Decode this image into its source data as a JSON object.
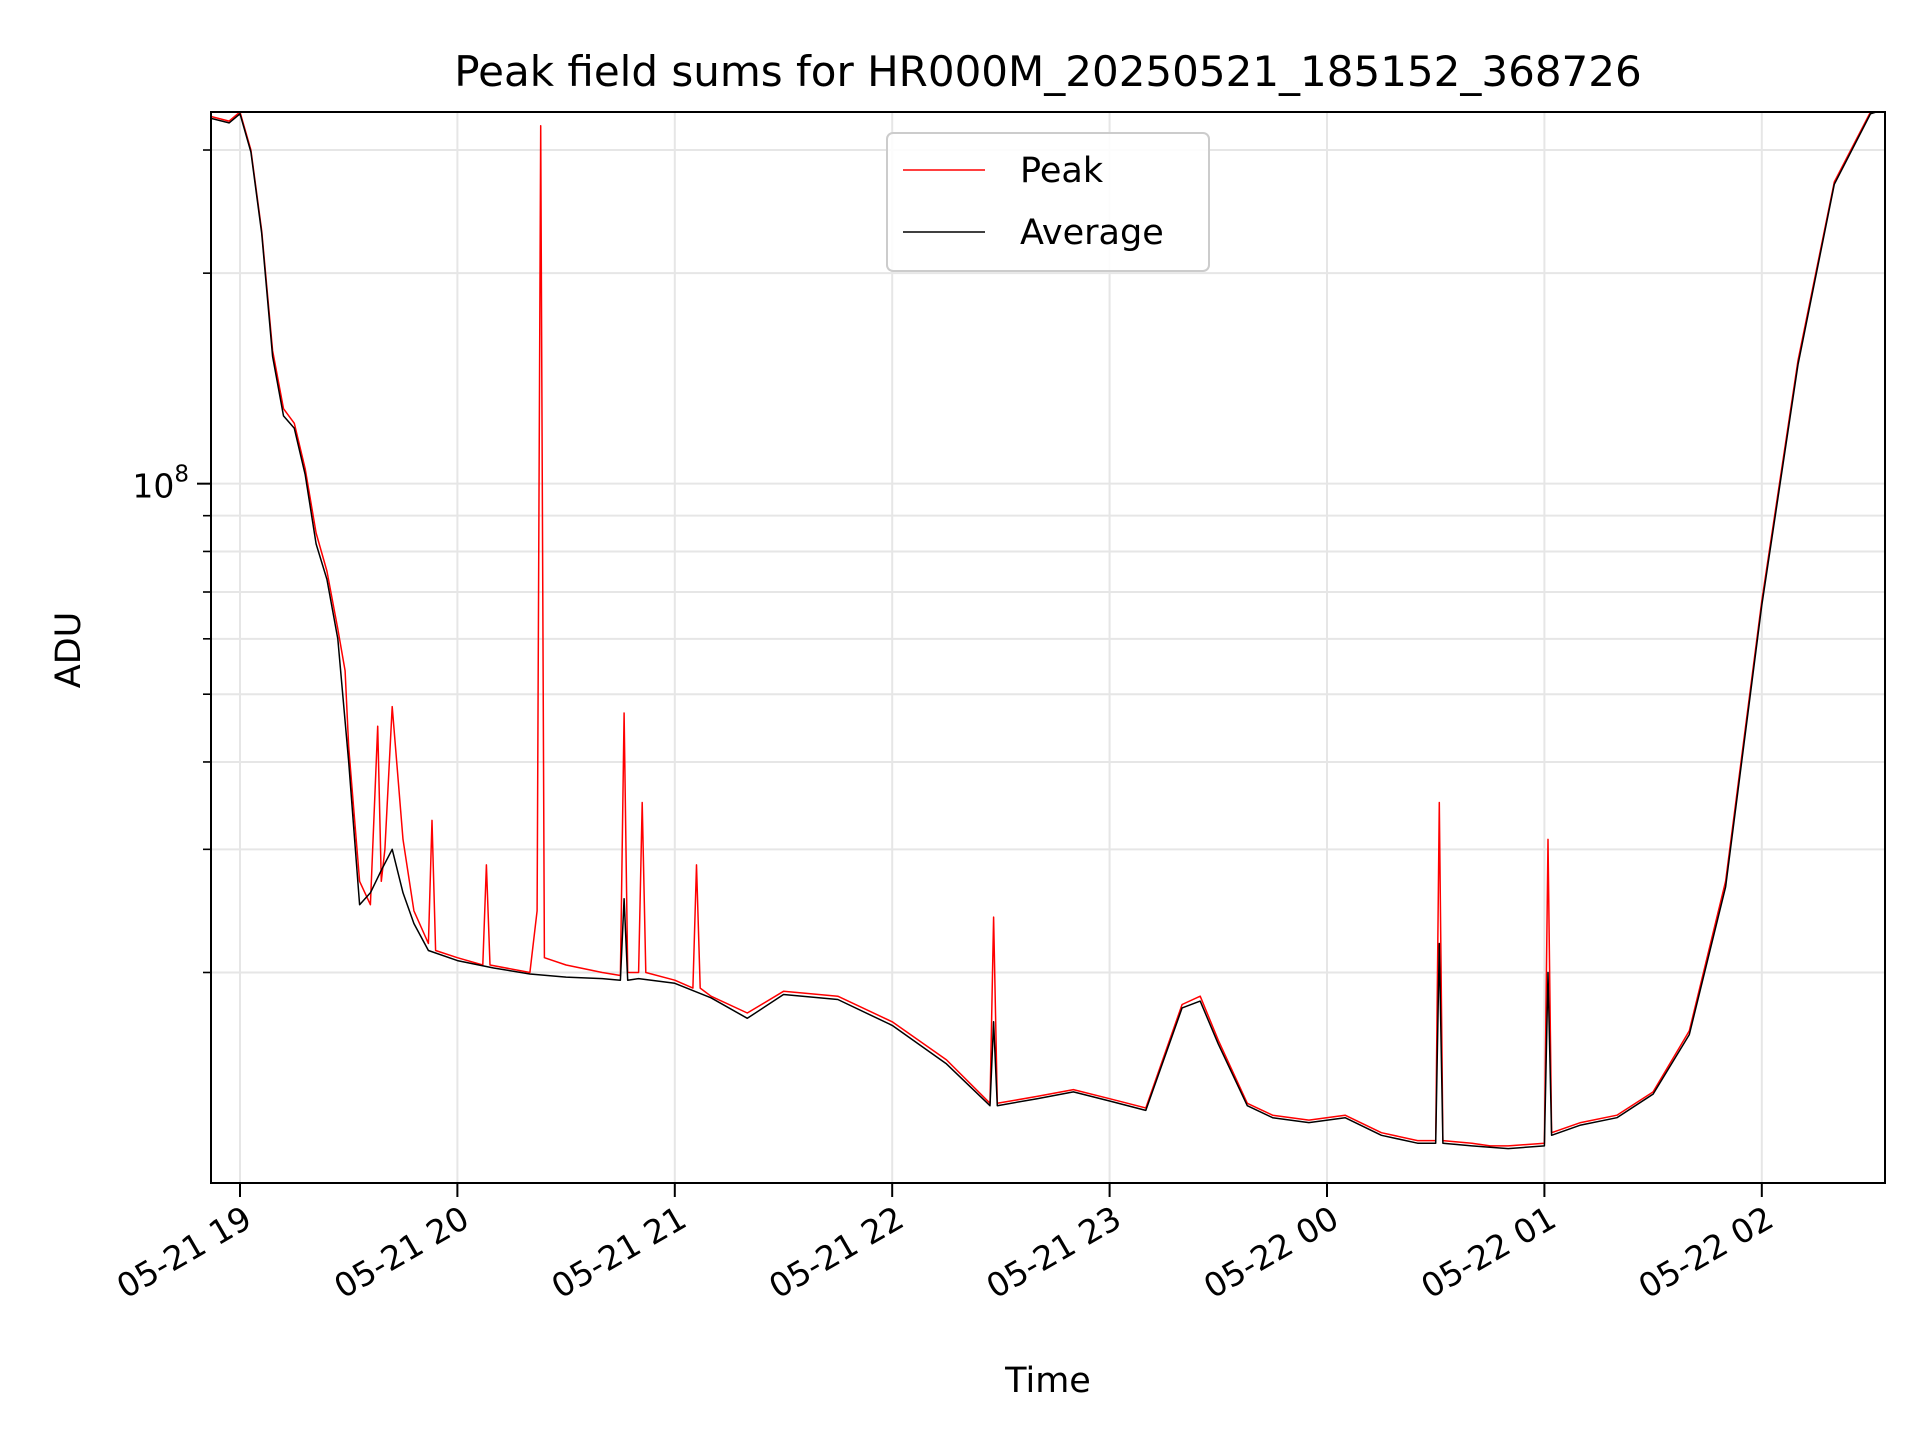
{
  "chart_data": {
    "type": "line",
    "title": "Peak field sums for HR000M_20250521_185152_368726",
    "xlabel": "Time",
    "ylabel": "ADU",
    "yscale": "log",
    "ylim": [
      10000000,
      340000000
    ],
    "xlim": [
      "2025-05-21 18:52",
      "2025-05-22 02:34"
    ],
    "grid": true,
    "legend_position": "top-center",
    "x_ticks": [
      {
        "value": "2025-05-21 19:00",
        "label": "05-21 19"
      },
      {
        "value": "2025-05-21 20:00",
        "label": "05-21 20"
      },
      {
        "value": "2025-05-21 21:00",
        "label": "05-21 21"
      },
      {
        "value": "2025-05-21 22:00",
        "label": "05-21 22"
      },
      {
        "value": "2025-05-21 23:00",
        "label": "05-21 23"
      },
      {
        "value": "2025-05-22 00:00",
        "label": "05-22 00"
      },
      {
        "value": "2025-05-22 01:00",
        "label": "05-22 01"
      },
      {
        "value": "2025-05-22 02:00",
        "label": "05-22 02"
      }
    ],
    "y_major_ticks": [
      {
        "value": 100000000,
        "label": "10",
        "exponent": "8"
      }
    ],
    "y_minor_ticks": [
      20000000,
      30000000,
      40000000,
      50000000,
      60000000,
      70000000,
      80000000,
      90000000,
      200000000,
      300000000
    ],
    "series": [
      {
        "name": "Peak",
        "color": "#ff0000",
        "x": [
          "2025-05-21 18:52",
          "2025-05-21 18:57",
          "2025-05-21 19:00",
          "2025-05-21 19:03",
          "2025-05-21 19:06",
          "2025-05-21 19:09",
          "2025-05-21 19:12",
          "2025-05-21 19:15",
          "2025-05-21 19:18",
          "2025-05-21 19:21",
          "2025-05-21 19:24",
          "2025-05-21 19:27",
          "2025-05-21 19:29",
          "2025-05-21 19:30",
          "2025-05-21 19:33",
          "2025-05-21 19:36",
          "2025-05-21 19:38",
          "2025-05-21 19:39",
          "2025-05-21 19:40",
          "2025-05-21 19:42",
          "2025-05-21 19:45",
          "2025-05-21 19:48",
          "2025-05-21 19:52",
          "2025-05-21 19:53",
          "2025-05-21 19:54",
          "2025-05-21 20:00",
          "2025-05-21 20:07",
          "2025-05-21 20:08",
          "2025-05-21 20:09",
          "2025-05-21 20:20",
          "2025-05-21 20:22",
          "2025-05-21 20:23",
          "2025-05-21 20:24",
          "2025-05-21 20:30",
          "2025-05-21 20:40",
          "2025-05-21 20:45",
          "2025-05-21 20:46",
          "2025-05-21 20:47",
          "2025-05-21 20:50",
          "2025-05-21 20:51",
          "2025-05-21 20:52",
          "2025-05-21 21:00",
          "2025-05-21 21:05",
          "2025-05-21 21:06",
          "2025-05-21 21:07",
          "2025-05-21 21:10",
          "2025-05-21 21:20",
          "2025-05-21 21:30",
          "2025-05-21 21:45",
          "2025-05-21 22:00",
          "2025-05-21 22:15",
          "2025-05-21 22:27",
          "2025-05-21 22:28",
          "2025-05-21 22:29",
          "2025-05-21 22:40",
          "2025-05-21 22:50",
          "2025-05-21 23:00",
          "2025-05-21 23:10",
          "2025-05-21 23:20",
          "2025-05-21 23:25",
          "2025-05-21 23:30",
          "2025-05-21 23:38",
          "2025-05-21 23:45",
          "2025-05-21 23:55",
          "2025-05-22 00:05",
          "2025-05-22 00:15",
          "2025-05-22 00:25",
          "2025-05-22 00:30",
          "2025-05-22 00:31",
          "2025-05-22 00:32",
          "2025-05-22 00:40",
          "2025-05-22 00:45",
          "2025-05-22 00:50",
          "2025-05-22 01:00",
          "2025-05-22 01:01",
          "2025-05-22 01:02",
          "2025-05-22 01:10",
          "2025-05-22 01:20",
          "2025-05-22 01:30",
          "2025-05-22 01:40",
          "2025-05-22 01:50",
          "2025-05-22 02:00",
          "2025-05-22 02:10",
          "2025-05-22 02:20",
          "2025-05-22 02:30",
          "2025-05-22 02:34"
        ],
        "values": [
          335000000,
          330000000,
          340000000,
          300000000,
          230000000,
          155000000,
          128000000,
          122000000,
          105000000,
          85000000,
          75000000,
          62000000,
          54000000,
          42000000,
          27000000,
          25000000,
          45000000,
          27000000,
          30000000,
          48000000,
          31000000,
          24500000,
          22000000,
          33000000,
          21500000,
          21000000,
          20500000,
          28500000,
          20500000,
          20000000,
          24500000,
          325000000,
          21000000,
          20500000,
          20000000,
          19800000,
          47000000,
          20000000,
          20000000,
          35000000,
          20000000,
          19500000,
          19000000,
          28500000,
          19000000,
          18500000,
          17500000,
          18800000,
          18500000,
          17000000,
          15000000,
          13000000,
          24000000,
          13000000,
          13300000,
          13600000,
          13200000,
          12800000,
          18000000,
          18500000,
          16000000,
          13000000,
          12500000,
          12300000,
          12500000,
          11800000,
          11500000,
          11500000,
          35000000,
          11500000,
          11400000,
          11300000,
          11300000,
          11400000,
          31000000,
          11800000,
          12200000,
          12500000,
          13500000,
          16500000,
          27000000,
          68000000,
          150000000,
          270000000,
          340000000,
          345000000
        ]
      },
      {
        "name": "Average",
        "color": "#000000",
        "x": [
          "2025-05-21 18:52",
          "2025-05-21 18:57",
          "2025-05-21 19:00",
          "2025-05-21 19:03",
          "2025-05-21 19:06",
          "2025-05-21 19:09",
          "2025-05-21 19:12",
          "2025-05-21 19:15",
          "2025-05-21 19:18",
          "2025-05-21 19:21",
          "2025-05-21 19:24",
          "2025-05-21 19:27",
          "2025-05-21 19:30",
          "2025-05-21 19:33",
          "2025-05-21 19:36",
          "2025-05-21 19:39",
          "2025-05-21 19:42",
          "2025-05-21 19:45",
          "2025-05-21 19:48",
          "2025-05-21 19:52",
          "2025-05-21 20:00",
          "2025-05-21 20:10",
          "2025-05-21 20:20",
          "2025-05-21 20:30",
          "2025-05-21 20:40",
          "2025-05-21 20:45",
          "2025-05-21 20:46",
          "2025-05-21 20:47",
          "2025-05-21 20:50",
          "2025-05-21 21:00",
          "2025-05-21 21:10",
          "2025-05-21 21:20",
          "2025-05-21 21:30",
          "2025-05-21 21:45",
          "2025-05-21 22:00",
          "2025-05-21 22:15",
          "2025-05-21 22:27",
          "2025-05-21 22:28",
          "2025-05-21 22:29",
          "2025-05-21 22:40",
          "2025-05-21 22:50",
          "2025-05-21 23:00",
          "2025-05-21 23:10",
          "2025-05-21 23:20",
          "2025-05-21 23:25",
          "2025-05-21 23:30",
          "2025-05-21 23:38",
          "2025-05-21 23:45",
          "2025-05-21 23:55",
          "2025-05-22 00:05",
          "2025-05-22 00:15",
          "2025-05-22 00:25",
          "2025-05-22 00:30",
          "2025-05-22 00:31",
          "2025-05-22 00:32",
          "2025-05-22 00:40",
          "2025-05-22 00:50",
          "2025-05-22 01:00",
          "2025-05-22 01:01",
          "2025-05-22 01:02",
          "2025-05-22 01:10",
          "2025-05-22 01:20",
          "2025-05-22 01:30",
          "2025-05-22 01:40",
          "2025-05-22 01:50",
          "2025-05-22 02:00",
          "2025-05-22 02:10",
          "2025-05-22 02:20",
          "2025-05-22 02:30",
          "2025-05-22 02:34"
        ],
        "values": [
          333000000,
          328000000,
          338000000,
          298000000,
          228000000,
          152000000,
          125000000,
          120000000,
          103000000,
          82000000,
          73000000,
          60000000,
          40000000,
          25000000,
          26000000,
          28000000,
          30000000,
          26000000,
          23500000,
          21500000,
          20800000,
          20300000,
          19900000,
          19700000,
          19600000,
          19500000,
          25500000,
          19500000,
          19600000,
          19300000,
          18400000,
          17200000,
          18600000,
          18300000,
          16800000,
          14800000,
          12900000,
          17000000,
          12900000,
          13200000,
          13500000,
          13100000,
          12700000,
          17800000,
          18200000,
          15800000,
          12900000,
          12400000,
          12200000,
          12400000,
          11700000,
          11400000,
          11400000,
          22000000,
          11400000,
          11300000,
          11200000,
          11300000,
          20000000,
          11700000,
          12100000,
          12400000,
          13400000,
          16300000,
          26500000,
          67000000,
          148000000,
          268000000,
          338000000,
          343000000
        ]
      }
    ]
  }
}
